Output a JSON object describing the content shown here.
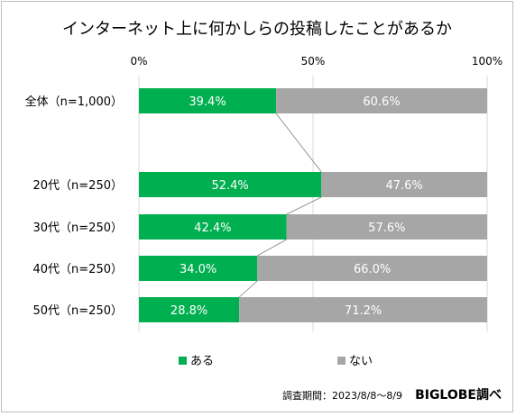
{
  "chart_data": {
    "type": "bar",
    "orientation": "horizontal",
    "stacked": true,
    "title": "インターネット上に何かしらの投稿したことがあるか",
    "x_ticks": [
      "0%",
      "50%",
      "100%"
    ],
    "xlim": [
      0,
      100
    ],
    "categories": [
      "全体（n=1,000）",
      "20代（n=250）",
      "30代（n=250）",
      "40代（n=250）",
      "50代（n=250）"
    ],
    "series": [
      {
        "name": "ある",
        "values": [
          39.4,
          52.4,
          42.4,
          34.0,
          28.8
        ],
        "labels": [
          "39.4%",
          "52.4%",
          "42.4%",
          "34.0%",
          "28.8%"
        ],
        "color": "#00b050"
      },
      {
        "name": "ない",
        "values": [
          60.6,
          47.6,
          57.6,
          66.0,
          71.2
        ],
        "labels": [
          "60.6%",
          "47.6%",
          "57.6%",
          "66.0%",
          "71.2%"
        ],
        "color": "#a6a6a6"
      }
    ],
    "legend_position": "bottom",
    "gridlines": true,
    "connector_lines": true
  },
  "footer": {
    "survey_period": "調査期間：2023/8/8～8/9",
    "brand": "BIGLOBE調べ"
  }
}
